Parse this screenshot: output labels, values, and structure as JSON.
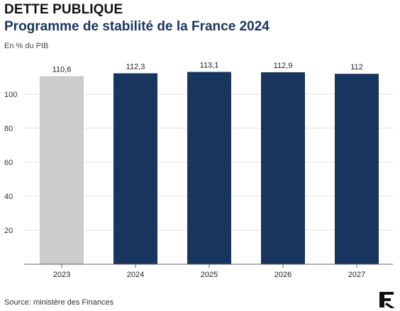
{
  "header": {
    "title": "DETTE PUBLIQUE",
    "subtitle": "Programme de stabilité de la France 2024",
    "unit_label": "En % du PIB"
  },
  "footer": {
    "source": "Source: ministère des Finances"
  },
  "colors": {
    "historical_bar": "#cccccc",
    "forecast_bar": "#17355e",
    "gridline": "#e3e3e3",
    "axis": "#666666"
  },
  "chart_data": {
    "type": "bar",
    "categories": [
      "2023",
      "2024",
      "2025",
      "2026",
      "2027"
    ],
    "values": [
      110.6,
      112.3,
      113.1,
      112.9,
      112
    ],
    "value_labels": [
      "110,6",
      "112,3",
      "113,1",
      "112,9",
      "112"
    ],
    "highlight": [
      "historical",
      "forecast",
      "forecast",
      "forecast",
      "forecast"
    ],
    "yticks": [
      20,
      40,
      60,
      80,
      100
    ],
    "ylim": [
      0,
      120
    ],
    "grid": true
  }
}
